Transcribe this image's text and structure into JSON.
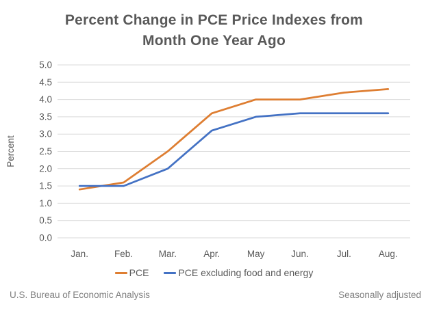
{
  "title": {
    "line1": "Percent Change in PCE Price Indexes from",
    "line2": "Month One Year Ago"
  },
  "chart_data": {
    "type": "line",
    "categories": [
      "Jan.",
      "Feb.",
      "Mar.",
      "Apr.",
      "May",
      "Jun.",
      "Jul.",
      "Aug."
    ],
    "series": [
      {
        "name": "PCE",
        "color": "#DE7E32",
        "values": [
          1.4,
          1.6,
          2.5,
          3.6,
          4.0,
          4.0,
          4.2,
          4.3
        ]
      },
      {
        "name": "PCE excluding food and energy",
        "color": "#4472C4",
        "values": [
          1.5,
          1.5,
          2.0,
          3.1,
          3.5,
          3.6,
          3.6,
          3.6
        ]
      }
    ],
    "title": "Percent Change in PCE Price Indexes from Month One Year Ago",
    "xlabel": "",
    "ylabel": "Percent",
    "ylim": [
      0.0,
      5.0
    ],
    "ytick_step": 0.5,
    "grid": "horizontal",
    "legend_position": "bottom"
  },
  "footer": {
    "left": "U.S. Bureau of Economic Analysis",
    "right": "Seasonally adjusted"
  },
  "colors": {
    "axis_text": "#595959",
    "gridline": "#D9D9D9",
    "series_pce": "#DE7E32",
    "series_core": "#4472C4"
  }
}
